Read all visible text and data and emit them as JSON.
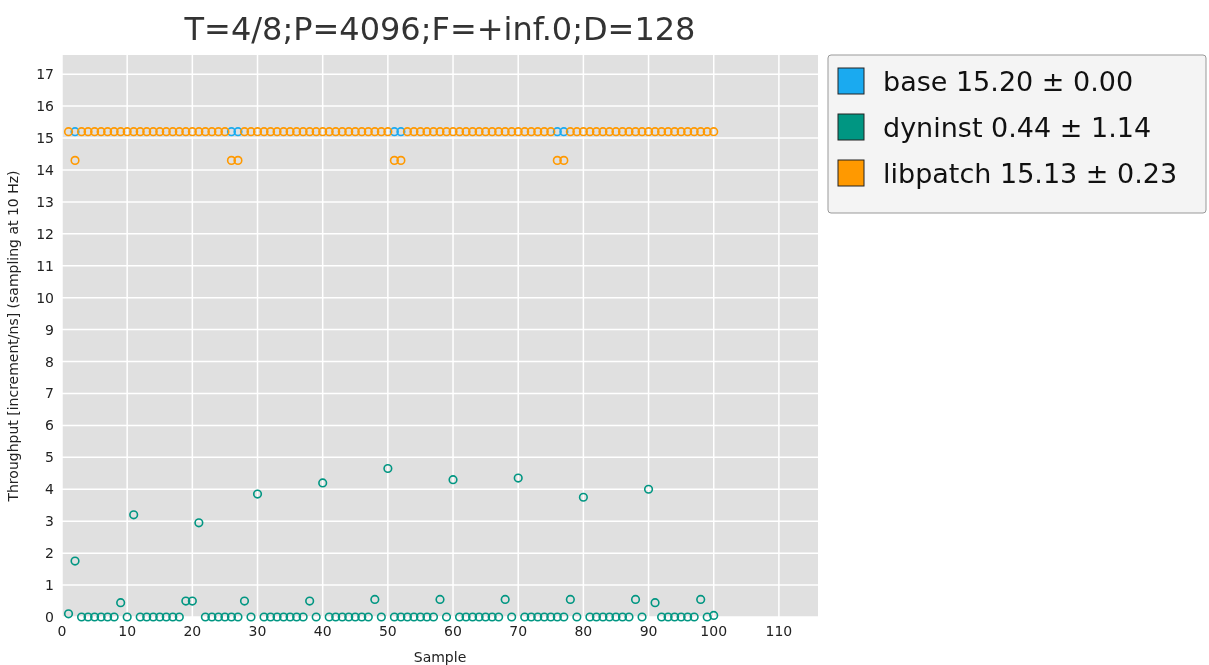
{
  "chart_data": {
    "type": "scatter",
    "title": "T=4/8;P=4096;F=+inf.0;D=128",
    "xlabel": "Sample",
    "ylabel": "Throughput [increment/ns] (sampling at 10 Hz)",
    "x": [
      1,
      2,
      3,
      4,
      5,
      6,
      7,
      8,
      9,
      10,
      11,
      12,
      13,
      14,
      15,
      16,
      17,
      18,
      19,
      20,
      21,
      22,
      23,
      24,
      25,
      26,
      27,
      28,
      29,
      30,
      31,
      32,
      33,
      34,
      35,
      36,
      37,
      38,
      39,
      40,
      41,
      42,
      43,
      44,
      45,
      46,
      47,
      48,
      49,
      50,
      51,
      52,
      53,
      54,
      55,
      56,
      57,
      58,
      59,
      60,
      61,
      62,
      63,
      64,
      65,
      66,
      67,
      68,
      69,
      70,
      71,
      72,
      73,
      74,
      75,
      76,
      77,
      78,
      79,
      80,
      81,
      82,
      83,
      84,
      85,
      86,
      87,
      88,
      89,
      90,
      91,
      92,
      93,
      94,
      95,
      96,
      97,
      98,
      99,
      100
    ],
    "series": [
      {
        "name": "base 15.20 ± 0.00",
        "color": "#1aaaf0",
        "values": [
          null,
          15.2,
          null,
          null,
          null,
          null,
          null,
          null,
          null,
          null,
          null,
          null,
          null,
          null,
          null,
          null,
          null,
          null,
          null,
          null,
          null,
          null,
          null,
          null,
          null,
          15.2,
          15.2,
          null,
          null,
          null,
          null,
          null,
          null,
          null,
          null,
          null,
          null,
          null,
          null,
          null,
          null,
          null,
          null,
          null,
          null,
          null,
          null,
          null,
          null,
          null,
          15.2,
          15.2,
          null,
          null,
          null,
          null,
          null,
          null,
          null,
          null,
          null,
          null,
          null,
          null,
          null,
          null,
          null,
          null,
          null,
          null,
          null,
          null,
          null,
          null,
          null,
          15.2,
          15.2,
          null,
          null,
          null,
          null,
          null,
          null,
          null,
          null,
          null,
          null,
          null,
          null,
          null,
          null,
          null,
          null,
          null,
          null,
          null,
          null,
          null,
          null,
          null
        ]
      },
      {
        "name": "dyninst 0.44 ± 1.14",
        "color": "#009682",
        "values": [
          0.1,
          1.75,
          0,
          0,
          0,
          0,
          0,
          0,
          0.45,
          0,
          3.2,
          0,
          0,
          0,
          0,
          0,
          0,
          0,
          0.5,
          0.5,
          2.95,
          0,
          0,
          0,
          0,
          0,
          0,
          0.5,
          0,
          3.85,
          0,
          0,
          0,
          0,
          0,
          0,
          0,
          0.5,
          0,
          4.2,
          0,
          0,
          0,
          0,
          0,
          0,
          0,
          0.55,
          0,
          4.65,
          0,
          0,
          0,
          0,
          0,
          0,
          0,
          0.55,
          0,
          4.3,
          0,
          0,
          0,
          0,
          0,
          0,
          0,
          0.55,
          0,
          4.35,
          0,
          0,
          0,
          0,
          0,
          0,
          0,
          0.55,
          0,
          3.75,
          0,
          0,
          0,
          0,
          0,
          0,
          0,
          0.55,
          0,
          4.0,
          0.45,
          0,
          0,
          0,
          0,
          0,
          0,
          0.55,
          0,
          0.05
        ]
      },
      {
        "name": "libpatch 15.13 ± 0.23",
        "color": "#ff9900",
        "values": [
          15.2,
          14.3,
          15.2,
          15.2,
          15.2,
          15.2,
          15.2,
          15.2,
          15.2,
          15.2,
          15.2,
          15.2,
          15.2,
          15.2,
          15.2,
          15.2,
          15.2,
          15.2,
          15.2,
          15.2,
          15.2,
          15.2,
          15.2,
          15.2,
          15.2,
          14.3,
          14.3,
          15.2,
          15.2,
          15.2,
          15.2,
          15.2,
          15.2,
          15.2,
          15.2,
          15.2,
          15.2,
          15.2,
          15.2,
          15.2,
          15.2,
          15.2,
          15.2,
          15.2,
          15.2,
          15.2,
          15.2,
          15.2,
          15.2,
          15.2,
          14.3,
          14.3,
          15.2,
          15.2,
          15.2,
          15.2,
          15.2,
          15.2,
          15.2,
          15.2,
          15.2,
          15.2,
          15.2,
          15.2,
          15.2,
          15.2,
          15.2,
          15.2,
          15.2,
          15.2,
          15.2,
          15.2,
          15.2,
          15.2,
          15.2,
          14.3,
          14.3,
          15.2,
          15.2,
          15.2,
          15.2,
          15.2,
          15.2,
          15.2,
          15.2,
          15.2,
          15.2,
          15.2,
          15.2,
          15.2,
          15.2,
          15.2,
          15.2,
          15.2,
          15.2,
          15.2,
          15.2,
          15.2,
          15.2,
          15.2
        ]
      }
    ],
    "xlim": [
      0,
      116
    ],
    "xticks": [
      0,
      10,
      20,
      30,
      40,
      50,
      60,
      70,
      80,
      90,
      100,
      110
    ],
    "ylim": [
      0,
      17.6
    ],
    "yticks": [
      0,
      1,
      2,
      3,
      4,
      5,
      6,
      7,
      8,
      9,
      10,
      11,
      12,
      13,
      14,
      15,
      16,
      17
    ],
    "grid": true,
    "legend": "top right",
    "marker": "circle"
  }
}
